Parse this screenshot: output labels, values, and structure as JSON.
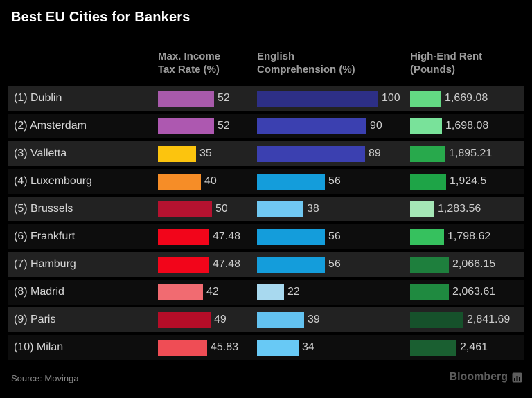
{
  "title": "Best EU Cities for Bankers",
  "columns": [
    {
      "label": "Max. Income\nTax Rate (%)"
    },
    {
      "label": "English\nComprehension (%)"
    },
    {
      "label": "High-End Rent\n(Pounds)"
    }
  ],
  "footer": {
    "source": "Source: Movinga",
    "brand": "Bloomberg"
  },
  "colors": {
    "page_background": "#000000",
    "row_odd_background": "#222222",
    "row_even_background": "#0d0d0d",
    "title_text": "#ffffff",
    "header_text": "#9d9d9d",
    "label_text": "#d6d6d6",
    "value_text": "#cdcdcd",
    "source_text": "#8a8a8a",
    "brand_text": "#5d5d5d"
  },
  "chart_data": {
    "type": "bar",
    "orientation": "horizontal",
    "title": "Best EU Cities for Bankers",
    "grid": false,
    "legend_position": "none",
    "categories": [
      "(1) Dublin",
      "(2) Amsterdam",
      "(3) Valletta",
      "(4) Luxembourg",
      "(5) Brussels",
      "(6) Frankfurt",
      "(7) Hamburg",
      "(8) Madrid",
      "(9) Paris",
      "(10) Milan"
    ],
    "series": [
      {
        "name": "Max. Income Tax Rate (%)",
        "axis_max": 52,
        "values": [
          52,
          52,
          35,
          40,
          50,
          47.48,
          47.48,
          42,
          49,
          45.83
        ],
        "labels": [
          "52",
          "52",
          "35",
          "40",
          "50",
          "47.48",
          "47.48",
          "42",
          "49",
          "45.83"
        ],
        "bar_colors": [
          "#a85aab",
          "#ad58b0",
          "#fcc40e",
          "#f68d27",
          "#b51230",
          "#f2051a",
          "#f2051a",
          "#f16b71",
          "#b50d28",
          "#ef4d55"
        ]
      },
      {
        "name": "English Comprehension (%)",
        "axis_max": 100,
        "values": [
          100,
          90,
          89,
          56,
          38,
          56,
          56,
          22,
          39,
          34
        ],
        "labels": [
          "100",
          "90",
          "89",
          "56",
          "38",
          "56",
          "56",
          "22",
          "39",
          "34"
        ],
        "bar_colors": [
          "#2d2f86",
          "#3b40b0",
          "#3b40b0",
          "#149ddb",
          "#70c8f2",
          "#149ddb",
          "#149ddb",
          "#a8d9ef",
          "#63c2f0",
          "#68c9f5"
        ]
      },
      {
        "name": "High-End Rent (Pounds)",
        "axis_max": 2841.69,
        "values": [
          1669.08,
          1698.08,
          1895.21,
          1924.5,
          1283.56,
          1798.62,
          2066.15,
          2063.61,
          2841.69,
          2461
        ],
        "labels": [
          "1,669.08",
          "1,698.08",
          "1,895.21",
          "1,924.5",
          "1,283.56",
          "1,798.62",
          "2,066.15",
          "2,063.61",
          "2,841.69",
          "2,461"
        ],
        "bar_colors": [
          "#63d983",
          "#79e29a",
          "#28a94c",
          "#1ea447",
          "#a5e7b6",
          "#36c15e",
          "#1e7f3d",
          "#1f8a40",
          "#16512b",
          "#1a5f31"
        ]
      }
    ]
  }
}
